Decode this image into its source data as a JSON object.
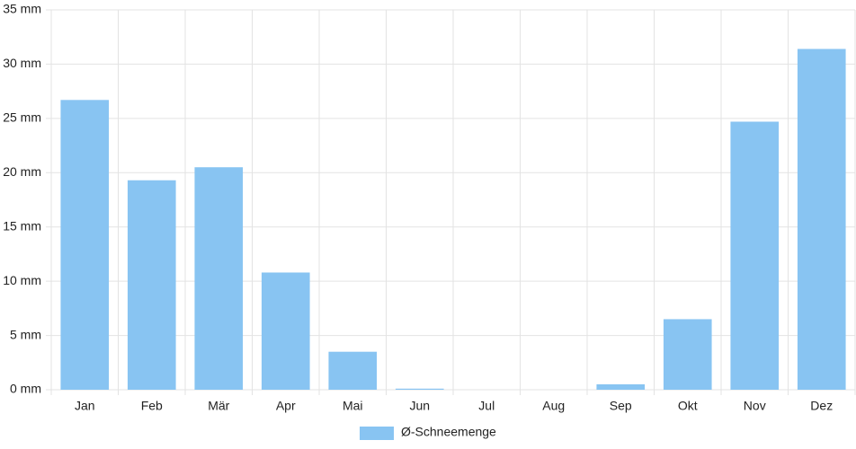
{
  "chart_data": {
    "type": "bar",
    "categories": [
      "Jan",
      "Feb",
      "Mär",
      "Apr",
      "Mai",
      "Jun",
      "Jul",
      "Aug",
      "Sep",
      "Okt",
      "Nov",
      "Dez"
    ],
    "series": [
      {
        "name": "Ø-Schneemenge",
        "color": "#88c4f2",
        "values": [
          26.7,
          19.3,
          20.5,
          10.8,
          3.5,
          0.1,
          0,
          0,
          0.5,
          6.5,
          24.7,
          31.4
        ]
      }
    ],
    "ylim": [
      0,
      35
    ],
    "yticks": [
      {
        "value": 0,
        "label": "0 mm"
      },
      {
        "value": 5,
        "label": "5 mm"
      },
      {
        "value": 10,
        "label": "10 mm"
      },
      {
        "value": 15,
        "label": "15 mm"
      },
      {
        "value": 20,
        "label": "20 mm"
      },
      {
        "value": 25,
        "label": "25 mm"
      },
      {
        "value": 30,
        "label": "30 mm"
      },
      {
        "value": 35,
        "label": "35 mm"
      }
    ],
    "grid": true,
    "legend": "bottom"
  }
}
